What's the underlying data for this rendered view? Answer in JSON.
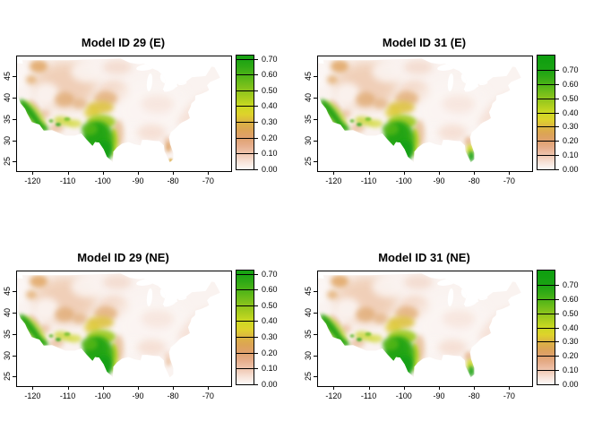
{
  "figure": {
    "background": "#ffffff",
    "layout": "2x2 panel grid of USA raster maps with color legends"
  },
  "axes": {
    "x_ticks": [
      "-120",
      "-110",
      "-100",
      "-90",
      "-80",
      "-70"
    ],
    "x_values": [
      -120,
      -110,
      -100,
      -90,
      -80,
      -70
    ],
    "y_ticks": [
      "25",
      "30",
      "35",
      "40",
      "45"
    ],
    "y_values": [
      25,
      30,
      35,
      40,
      45
    ],
    "lon_range": [
      -124.7,
      -63.73
    ],
    "lat_range": [
      22.95,
      49.9
    ]
  },
  "legend": {
    "tick_labels": [
      "0.70",
      "0.60",
      "0.50",
      "0.40",
      "0.30",
      "0.20",
      "0.10",
      "0.00"
    ],
    "tick_values": [
      0.7,
      0.6,
      0.5,
      0.4,
      0.3,
      0.2,
      0.1,
      0.0
    ],
    "gradient_stops": [
      [
        0.0,
        "#fdfaf8"
      ],
      [
        0.05,
        "#f7e2d7"
      ],
      [
        0.1,
        "#efc5ae"
      ],
      [
        0.15,
        "#e6ae8c"
      ],
      [
        0.2,
        "#dfa06d"
      ],
      [
        0.25,
        "#dca455"
      ],
      [
        0.3,
        "#dcb542"
      ],
      [
        0.35,
        "#ded32b"
      ],
      [
        0.4,
        "#cbd922"
      ],
      [
        0.45,
        "#abce1e"
      ],
      [
        0.5,
        "#8cc41c"
      ],
      [
        0.55,
        "#6bbc1a"
      ],
      [
        0.6,
        "#4bb317"
      ],
      [
        0.65,
        "#2fa915"
      ],
      [
        0.7,
        "#1aa313"
      ]
    ]
  },
  "panels": [
    {
      "title": "Model ID 29 (E)",
      "florida": "orange",
      "legend_max": 0.72,
      "legend_top_color": "#16a212"
    },
    {
      "title": "Model ID 31 (E)",
      "florida": "green",
      "legend_max": 0.8,
      "legend_top_color": "#0d9e0f"
    },
    {
      "title": "Model ID 29 (NE)",
      "florida": "orange-faint",
      "legend_max": 0.72,
      "legend_top_color": "#16a212"
    },
    {
      "title": "Model ID 31 (NE)",
      "florida": "green",
      "legend_max": 0.8,
      "legend_top_color": "#0d9e0f"
    }
  ],
  "chart_data": {
    "type": "heatmap",
    "subtype": "geographic suitability raster maps of the continental USA, 2x2 grid",
    "shared_axes": {
      "x": {
        "meaning": "longitude (degrees)",
        "ticks": [
          -120,
          -110,
          -100,
          -90,
          -80,
          -70
        ],
        "range": [
          -124.7,
          -63.7
        ]
      },
      "y": {
        "meaning": "latitude (degrees)",
        "ticks": [
          25,
          30,
          35,
          40,
          45
        ],
        "range": [
          22.9,
          49.9
        ]
      }
    },
    "color_scale": {
      "legend_position": "right of each panel",
      "ticks": [
        0.0,
        0.1,
        0.2,
        0.3,
        0.4,
        0.5,
        0.6,
        0.7
      ],
      "colors_low_to_high": [
        "#fdfaf8",
        "#efc5ae",
        "#dfa06d",
        "#dcb542",
        "#cbd922",
        "#8cc41c",
        "#4bb317",
        "#1aa313"
      ],
      "description": "near-white pink at 0 through salmon-orange (~0.2), yellow (~0.35), yellow-green (~0.45) to saturated green (>=0.6)"
    },
    "panels": [
      {
        "title": "Model ID 29 (E)",
        "scale_range": [
          0,
          0.72
        ],
        "regions": [
          {
            "region": "south and central Texas core",
            "approx_value": 0.65
          },
          {
            "region": "coastal and southern California strip",
            "approx_value": 0.55
          },
          {
            "region": "Arizona / New Mexico uplands patches",
            "approx_value": 0.35
          },
          {
            "region": "yellow band north of Texas core (lat 36-39)",
            "approx_value": 0.35
          },
          {
            "region": "intermountain west (UT/CO/ID/MT)",
            "approx_value": 0.18
          },
          {
            "region": "Pacific Northwest interior",
            "approx_value": 0.25
          },
          {
            "region": "central Florida spot",
            "approx_value": 0.18
          },
          {
            "region": "eastern USA background",
            "approx_value": 0.03
          }
        ]
      },
      {
        "title": "Model ID 31 (E)",
        "scale_range": [
          0,
          0.8
        ],
        "regions": [
          {
            "region": "south and central Texas core",
            "approx_value": 0.65
          },
          {
            "region": "coastal and southern California strip",
            "approx_value": 0.55
          },
          {
            "region": "Arizona / New Mexico uplands patches",
            "approx_value": 0.35
          },
          {
            "region": "yellow band north of Texas core (lat 36-39)",
            "approx_value": 0.35
          },
          {
            "region": "intermountain west (UT/CO/ID/MT)",
            "approx_value": 0.18
          },
          {
            "region": "Pacific Northwest interior",
            "approx_value": 0.25
          },
          {
            "region": "south Florida tip (green/yellow)",
            "approx_value": 0.5
          },
          {
            "region": "eastern USA background",
            "approx_value": 0.03
          }
        ]
      },
      {
        "title": "Model ID 29 (NE)",
        "scale_range": [
          0,
          0.72
        ],
        "regions": [
          {
            "region": "south and central Texas core",
            "approx_value": 0.65
          },
          {
            "region": "coastal and southern California strip",
            "approx_value": 0.55
          },
          {
            "region": "Arizona / New Mexico uplands patches",
            "approx_value": 0.35
          },
          {
            "region": "yellow band north of Texas core (lat 36-39)",
            "approx_value": 0.35
          },
          {
            "region": "intermountain west (UT/CO/ID/MT)",
            "approx_value": 0.18
          },
          {
            "region": "Pacific Northwest interior",
            "approx_value": 0.25
          },
          {
            "region": "central Florida spot (faint)",
            "approx_value": 0.1
          },
          {
            "region": "eastern USA background",
            "approx_value": 0.03
          }
        ]
      },
      {
        "title": "Model ID 31 (NE)",
        "scale_range": [
          0,
          0.8
        ],
        "regions": [
          {
            "region": "south and central Texas core",
            "approx_value": 0.65
          },
          {
            "region": "coastal and southern California strip",
            "approx_value": 0.55
          },
          {
            "region": "Arizona / New Mexico uplands patches",
            "approx_value": 0.35
          },
          {
            "region": "yellow band north of Texas core (lat 36-39)",
            "approx_value": 0.35
          },
          {
            "region": "intermountain west (UT/CO/ID/MT)",
            "approx_value": 0.18
          },
          {
            "region": "Pacific Northwest interior",
            "approx_value": 0.25
          },
          {
            "region": "south Florida tip (green/yellow)",
            "approx_value": 0.5
          },
          {
            "region": "eastern USA background",
            "approx_value": 0.03
          }
        ]
      }
    ]
  }
}
